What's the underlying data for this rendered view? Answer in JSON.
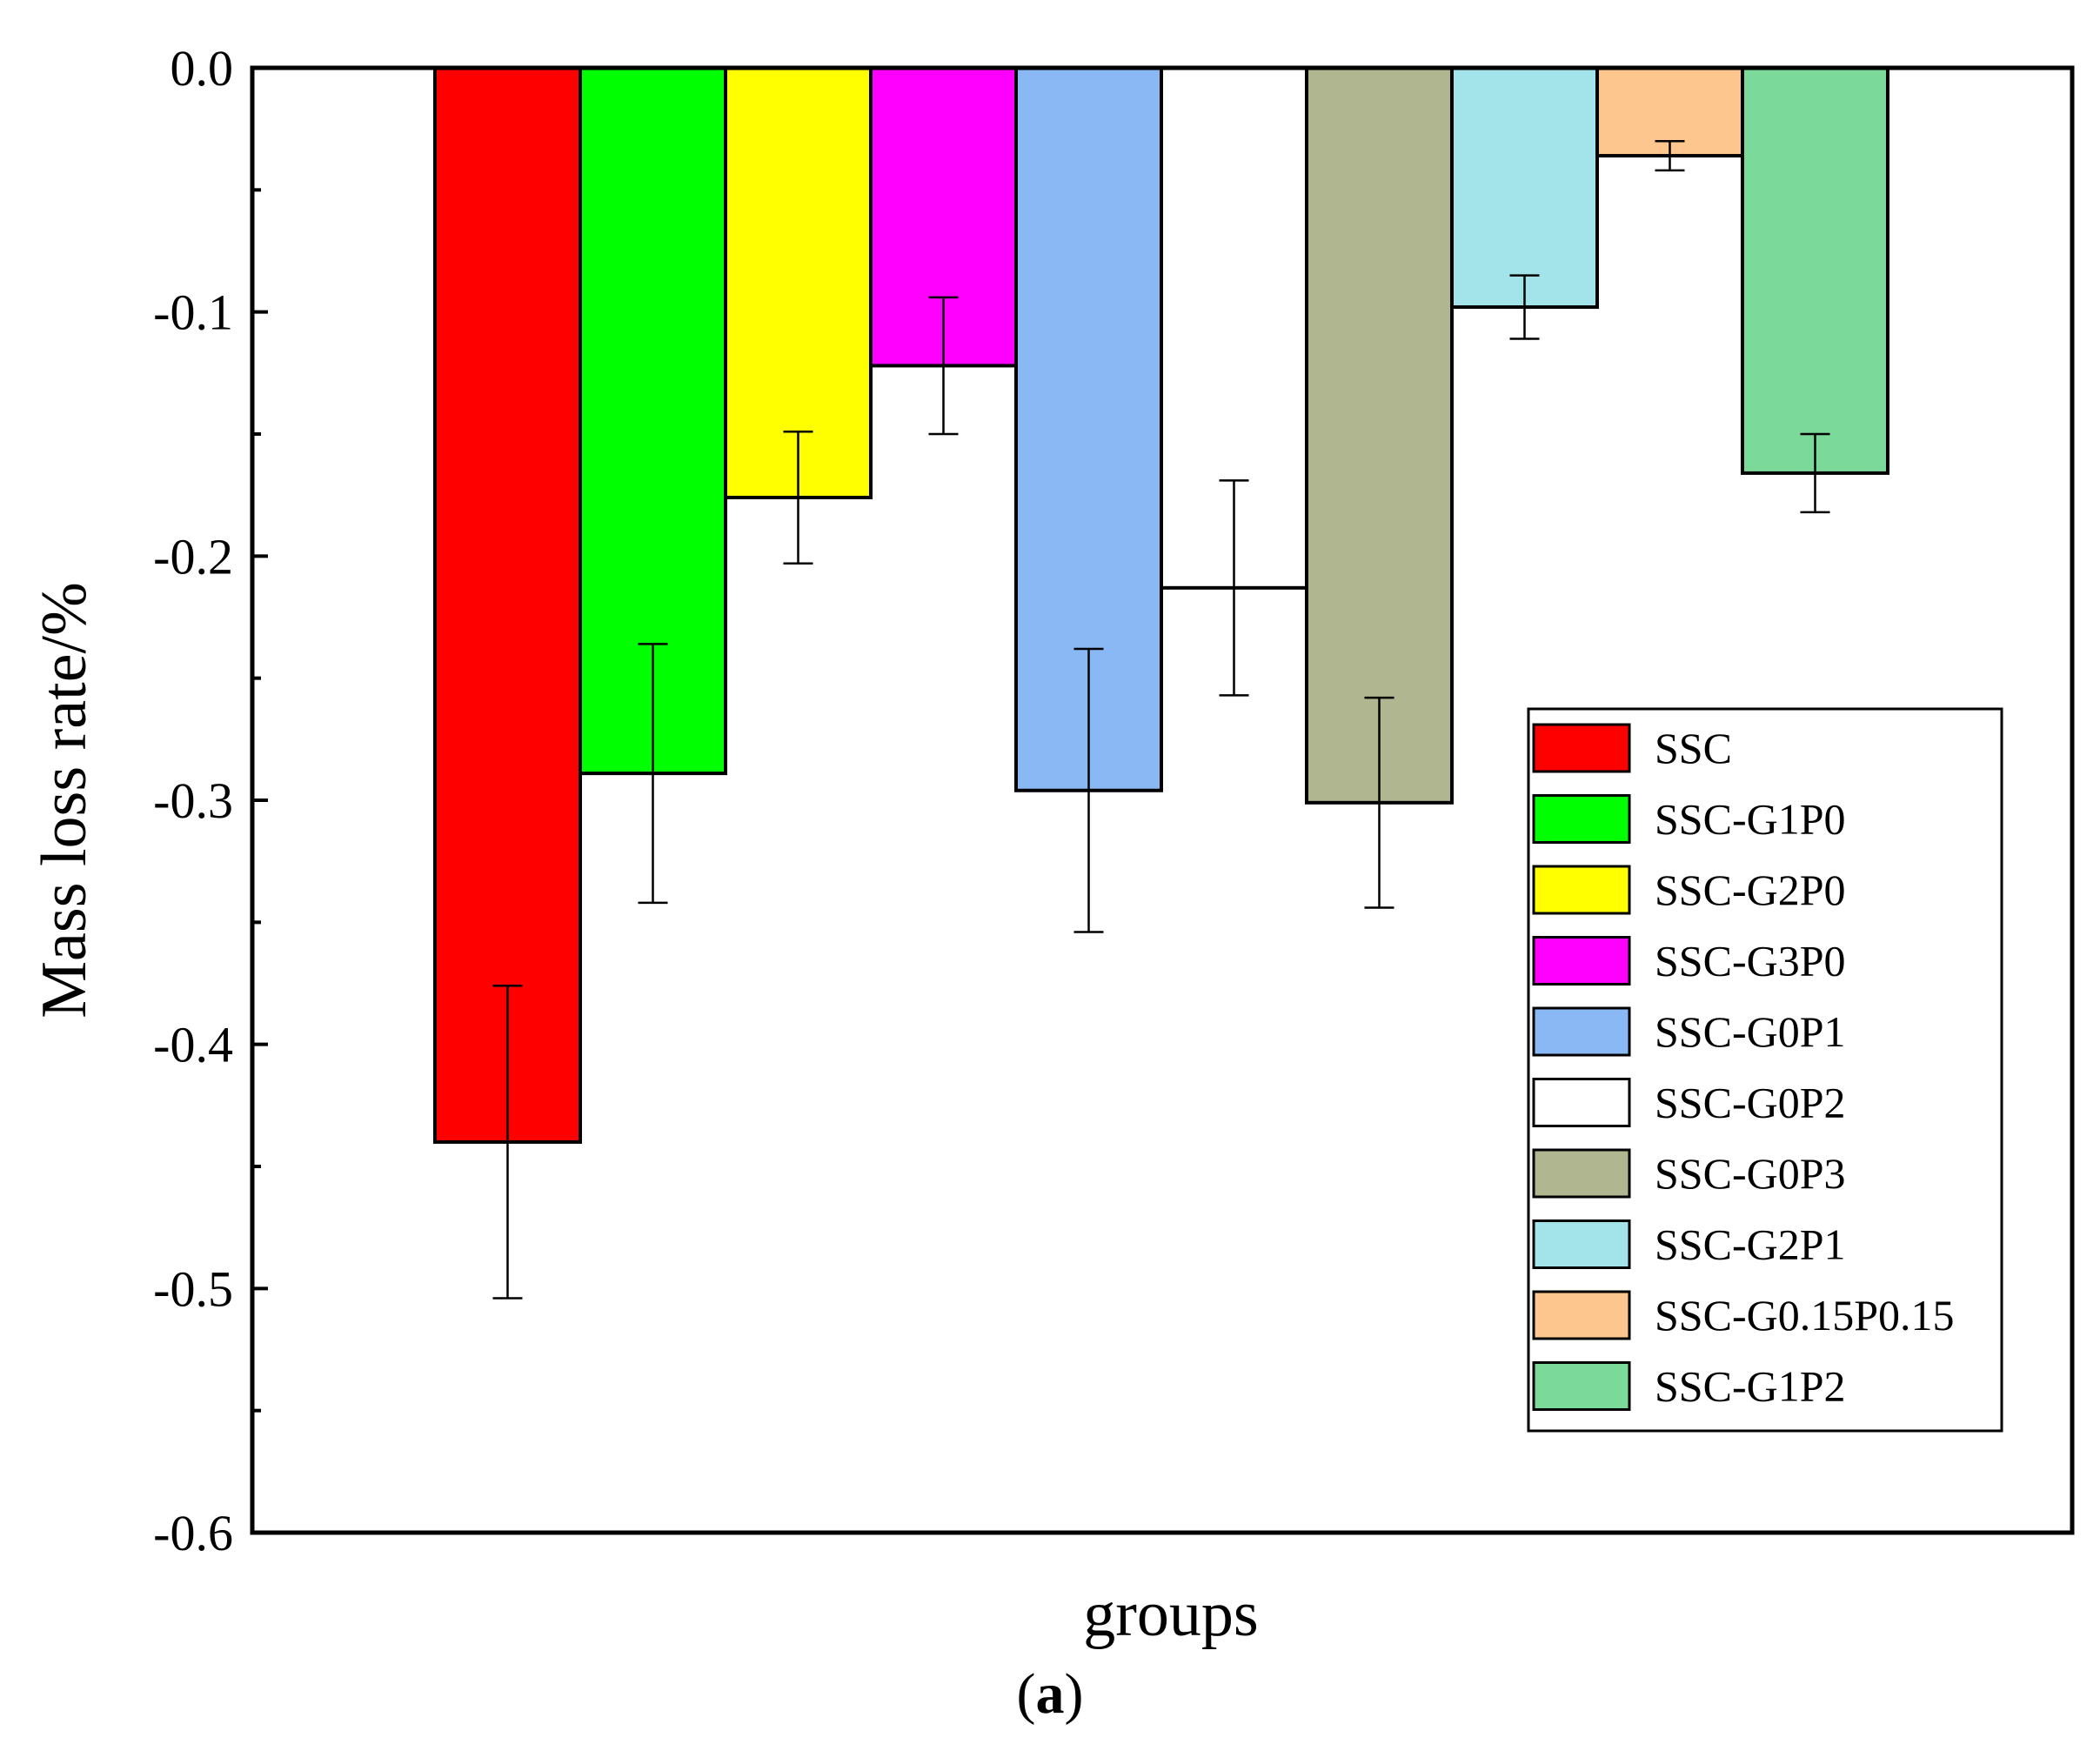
{
  "chart_data": {
    "type": "bar",
    "title": "",
    "xlabel": "groups",
    "ylabel": "Mass loss rate/%",
    "ylim": [
      -0.6,
      0.0
    ],
    "yticks": [
      "0.0",
      "-0.1",
      "-0.2",
      "-0.3",
      "-0.4",
      "-0.5",
      "-0.6"
    ],
    "legend_position": "lower-right",
    "series": [
      {
        "name": "SSC",
        "value": -0.44,
        "error": 0.064,
        "color": "#ff0000"
      },
      {
        "name": "SSC-G1P0",
        "value": -0.289,
        "error": 0.053,
        "color": "#00ff00"
      },
      {
        "name": "SSC-G2P0",
        "value": -0.176,
        "error": 0.027,
        "color": "#ffff00"
      },
      {
        "name": "SSC-G3P0",
        "value": -0.122,
        "error": 0.028,
        "color": "#ff00ff"
      },
      {
        "name": "SSC-G0P1",
        "value": -0.296,
        "error": 0.058,
        "color": "#8ab8f5"
      },
      {
        "name": "SSC-G0P2",
        "value": -0.213,
        "error": 0.044,
        "color": "#ffffff"
      },
      {
        "name": "SSC-G0P3",
        "value": -0.301,
        "error": 0.043,
        "color": "#b0b68f"
      },
      {
        "name": "SSC-G2P1",
        "value": -0.098,
        "error": 0.013,
        "color": "#a3e4eb"
      },
      {
        "name": "SSC-G0.15P0.15",
        "value": -0.036,
        "error": 0.006,
        "color": "#fdc68e"
      },
      {
        "name": "SSC-G1P2",
        "value": -0.166,
        "error": 0.016,
        "color": "#7bd99a"
      }
    ]
  },
  "caption": {
    "open": "(",
    "letter": "a",
    "close": ")"
  }
}
